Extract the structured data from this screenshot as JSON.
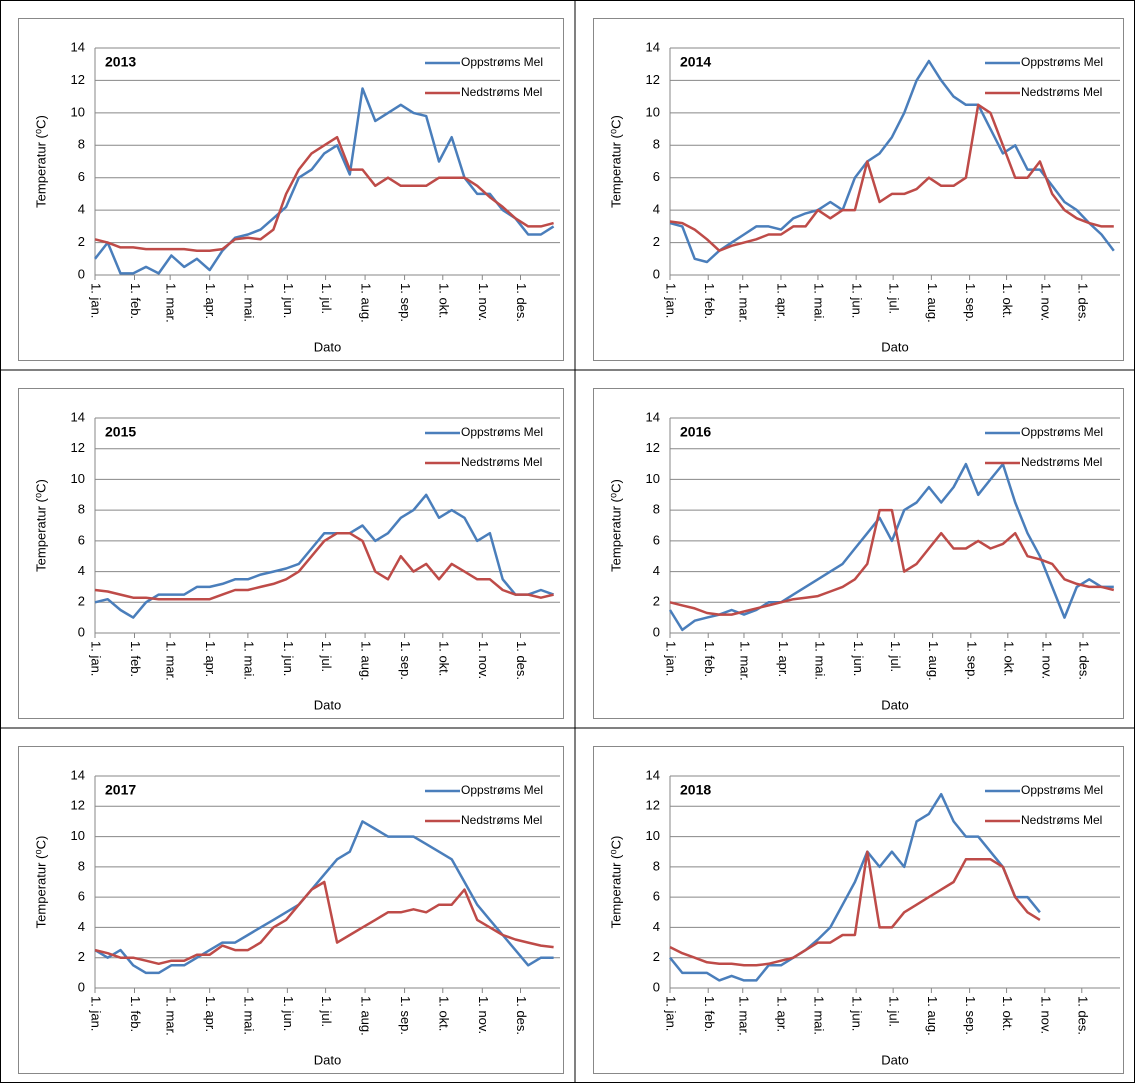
{
  "chart_data": [
    {
      "type": "line",
      "title": "2013",
      "y_label": "Temperatur (⁰C)",
      "x_label": "Dato",
      "legend": "upper right",
      "grid": true,
      "xlim": [
        0,
        365
      ],
      "ylim": [
        0,
        14
      ],
      "yticks": [
        0,
        2,
        4,
        6,
        8,
        10,
        12,
        14
      ],
      "xticks": [
        {
          "value": 0,
          "label": "1. jan."
        },
        {
          "value": 31,
          "label": "1. feb."
        },
        {
          "value": 59,
          "label": "1. mar."
        },
        {
          "value": 90,
          "label": "1. apr."
        },
        {
          "value": 120,
          "label": "1. mai."
        },
        {
          "value": 151,
          "label": "1. jun."
        },
        {
          "value": 181,
          "label": "1. jul."
        },
        {
          "value": 212,
          "label": "1. aug."
        },
        {
          "value": 243,
          "label": "1. sep."
        },
        {
          "value": 273,
          "label": "1. okt."
        },
        {
          "value": 304,
          "label": "1. nov."
        },
        {
          "value": 334,
          "label": "1. des."
        }
      ],
      "x": [
        0,
        10,
        20,
        30,
        40,
        50,
        60,
        70,
        80,
        90,
        100,
        110,
        120,
        130,
        140,
        150,
        160,
        170,
        180,
        190,
        200,
        210,
        220,
        230,
        240,
        250,
        260,
        270,
        280,
        290,
        300,
        310,
        320,
        330,
        340,
        350,
        360
      ],
      "series": [
        {
          "name": "Oppstrøms Mel",
          "color": "#4a7ebb",
          "values": [
            1,
            2,
            0.1,
            0.1,
            0.5,
            0.1,
            1.2,
            0.5,
            1,
            0.3,
            1.5,
            2.3,
            2.5,
            2.8,
            3.5,
            4.2,
            6,
            6.5,
            7.5,
            8,
            6.2,
            11.5,
            9.5,
            10,
            10.5,
            10,
            9.8,
            7,
            8.5,
            6,
            5,
            5,
            4,
            3.5,
            2.5,
            2.5,
            3
          ]
        },
        {
          "name": "Nedstrøms Mel",
          "color": "#be4b48",
          "values": [
            2.2,
            2,
            1.7,
            1.7,
            1.6,
            1.6,
            1.6,
            1.6,
            1.5,
            1.5,
            1.6,
            2.2,
            2.3,
            2.2,
            2.8,
            5,
            6.5,
            7.5,
            8,
            8.5,
            6.5,
            6.5,
            5.5,
            6,
            5.5,
            5.5,
            5.5,
            6,
            6,
            6,
            5.5,
            4.8,
            4.2,
            3.5,
            3,
            3,
            3.2
          ]
        }
      ]
    },
    {
      "type": "line",
      "title": "2014",
      "y_label": "Temperatur (⁰C)",
      "x_label": "Dato",
      "legend": "upper right",
      "grid": true,
      "xlim": [
        0,
        365
      ],
      "ylim": [
        0,
        14
      ],
      "yticks": [
        0,
        2,
        4,
        6,
        8,
        10,
        12,
        14
      ],
      "xticks": [
        {
          "value": 0,
          "label": "1. jan."
        },
        {
          "value": 31,
          "label": "1. feb."
        },
        {
          "value": 59,
          "label": "1. mar."
        },
        {
          "value": 90,
          "label": "1. apr."
        },
        {
          "value": 120,
          "label": "1. mai."
        },
        {
          "value": 151,
          "label": "1. jun."
        },
        {
          "value": 181,
          "label": "1. jul."
        },
        {
          "value": 212,
          "label": "1. aug."
        },
        {
          "value": 243,
          "label": "1. sep."
        },
        {
          "value": 273,
          "label": "1. okt."
        },
        {
          "value": 304,
          "label": "1. nov."
        },
        {
          "value": 334,
          "label": "1. des."
        }
      ],
      "x": [
        0,
        10,
        20,
        30,
        40,
        50,
        60,
        70,
        80,
        90,
        100,
        110,
        120,
        130,
        140,
        150,
        160,
        170,
        180,
        190,
        200,
        210,
        220,
        230,
        240,
        250,
        260,
        270,
        280,
        290,
        300,
        310,
        320,
        330,
        340,
        350,
        360
      ],
      "series": [
        {
          "name": "Oppstrøms Mel",
          "color": "#4a7ebb",
          "values": [
            3.2,
            3,
            1,
            0.8,
            1.5,
            2,
            2.5,
            3,
            3,
            2.8,
            3.5,
            3.8,
            4,
            4.5,
            4,
            6,
            7,
            7.5,
            8.5,
            10,
            12,
            13.2,
            12,
            11,
            10.5,
            10.5,
            9,
            7.5,
            8,
            6.5,
            6.5,
            5.5,
            4.5,
            4,
            3.2,
            2.5,
            1.5
          ]
        },
        {
          "name": "Nedstrøms Mel",
          "color": "#be4b48",
          "values": [
            3.3,
            3.2,
            2.8,
            2.2,
            1.5,
            1.8,
            2,
            2.2,
            2.5,
            2.5,
            3,
            3,
            4,
            3.5,
            4,
            4,
            7,
            4.5,
            5,
            5,
            5.3,
            6,
            5.5,
            5.5,
            6,
            10.5,
            10,
            8,
            6,
            6,
            7,
            5,
            4,
            3.5,
            3.2,
            3,
            3
          ]
        }
      ]
    },
    {
      "type": "line",
      "title": "2015",
      "y_label": "Temperatur (⁰C)",
      "x_label": "Dato",
      "legend": "upper right",
      "grid": true,
      "xlim": [
        0,
        365
      ],
      "ylim": [
        0,
        14
      ],
      "yticks": [
        0,
        2,
        4,
        6,
        8,
        10,
        12,
        14
      ],
      "xticks": [
        {
          "value": 0,
          "label": "1. jan."
        },
        {
          "value": 31,
          "label": "1. feb."
        },
        {
          "value": 59,
          "label": "1. mar."
        },
        {
          "value": 90,
          "label": "1. apr."
        },
        {
          "value": 120,
          "label": "1. mai."
        },
        {
          "value": 151,
          "label": "1. jun."
        },
        {
          "value": 181,
          "label": "1. jul."
        },
        {
          "value": 212,
          "label": "1. aug."
        },
        {
          "value": 243,
          "label": "1. sep."
        },
        {
          "value": 273,
          "label": "1. okt."
        },
        {
          "value": 304,
          "label": "1. nov."
        },
        {
          "value": 334,
          "label": "1. des."
        }
      ],
      "x": [
        0,
        10,
        20,
        30,
        40,
        50,
        60,
        70,
        80,
        90,
        100,
        110,
        120,
        130,
        140,
        150,
        160,
        170,
        180,
        190,
        200,
        210,
        220,
        230,
        240,
        250,
        260,
        270,
        280,
        290,
        300,
        310,
        320,
        330,
        340,
        350,
        360
      ],
      "series": [
        {
          "name": "Oppstrøms Mel",
          "color": "#4a7ebb",
          "values": [
            2,
            2.2,
            1.5,
            1,
            2,
            2.5,
            2.5,
            2.5,
            3,
            3,
            3.2,
            3.5,
            3.5,
            3.8,
            4,
            4.2,
            4.5,
            5.5,
            6.5,
            6.5,
            6.5,
            7,
            6,
            6.5,
            7.5,
            8,
            9,
            7.5,
            8,
            7.5,
            6,
            6.5,
            3.5,
            2.5,
            2.5,
            2.8,
            2.5
          ]
        },
        {
          "name": "Nedstrøms Mel",
          "color": "#be4b48",
          "values": [
            2.8,
            2.7,
            2.5,
            2.3,
            2.3,
            2.2,
            2.2,
            2.2,
            2.2,
            2.2,
            2.5,
            2.8,
            2.8,
            3,
            3.2,
            3.5,
            4,
            5,
            6,
            6.5,
            6.5,
            6,
            4,
            3.5,
            5,
            4,
            4.5,
            3.5,
            4.5,
            4,
            3.5,
            3.5,
            2.8,
            2.5,
            2.5,
            2.3,
            2.5
          ]
        }
      ]
    },
    {
      "type": "line",
      "title": "2016",
      "y_label": "Temperatur (⁰C)",
      "x_label": "Dato",
      "legend": "upper right",
      "grid": true,
      "xlim": [
        0,
        365
      ],
      "ylim": [
        0,
        14
      ],
      "yticks": [
        0,
        2,
        4,
        6,
        8,
        10,
        12,
        14
      ],
      "xticks": [
        {
          "value": 0,
          "label": "1. jan."
        },
        {
          "value": 31,
          "label": "1. feb."
        },
        {
          "value": 60,
          "label": "1. mar."
        },
        {
          "value": 91,
          "label": "1. apr."
        },
        {
          "value": 121,
          "label": "1. mai."
        },
        {
          "value": 152,
          "label": "1. jun."
        },
        {
          "value": 182,
          "label": "1. jul."
        },
        {
          "value": 213,
          "label": "1. aug."
        },
        {
          "value": 244,
          "label": "1. sep."
        },
        {
          "value": 274,
          "label": "1. okt."
        },
        {
          "value": 305,
          "label": "1. nov."
        },
        {
          "value": 335,
          "label": "1. des."
        }
      ],
      "x": [
        0,
        10,
        20,
        30,
        40,
        50,
        60,
        70,
        80,
        90,
        100,
        110,
        120,
        130,
        140,
        150,
        160,
        170,
        180,
        190,
        200,
        210,
        220,
        230,
        240,
        250,
        260,
        270,
        280,
        290,
        300,
        310,
        320,
        330,
        340,
        350,
        360
      ],
      "series": [
        {
          "name": "Oppstrøms Mel",
          "color": "#4a7ebb",
          "values": [
            1.5,
            0.2,
            0.8,
            1,
            1.2,
            1.5,
            1.2,
            1.5,
            2,
            2,
            2.5,
            3,
            3.5,
            4,
            4.5,
            5.5,
            6.5,
            7.5,
            6,
            8,
            8.5,
            9.5,
            8.5,
            9.5,
            11,
            9,
            10,
            11,
            8.5,
            6.5,
            5,
            3,
            1,
            3,
            3.5,
            3,
            3
          ]
        },
        {
          "name": "Nedstrøms Mel",
          "color": "#be4b48",
          "values": [
            2,
            1.8,
            1.6,
            1.3,
            1.2,
            1.2,
            1.4,
            1.6,
            1.8,
            2,
            2.2,
            2.3,
            2.4,
            2.7,
            3,
            3.5,
            4.5,
            8,
            8,
            4,
            4.5,
            5.5,
            6.5,
            5.5,
            5.5,
            6,
            5.5,
            5.8,
            6.5,
            5,
            4.8,
            4.5,
            3.5,
            3.2,
            3,
            3,
            2.8
          ]
        }
      ]
    },
    {
      "type": "line",
      "title": "2017",
      "y_label": "Temperatur (⁰C)",
      "x_label": "Dato",
      "legend": "upper right",
      "grid": true,
      "xlim": [
        0,
        365
      ],
      "ylim": [
        0,
        14
      ],
      "yticks": [
        0,
        2,
        4,
        6,
        8,
        10,
        12,
        14
      ],
      "xticks": [
        {
          "value": 0,
          "label": "1. jan."
        },
        {
          "value": 31,
          "label": "1. feb."
        },
        {
          "value": 59,
          "label": "1. mar."
        },
        {
          "value": 90,
          "label": "1. apr."
        },
        {
          "value": 120,
          "label": "1. mai."
        },
        {
          "value": 151,
          "label": "1. jun."
        },
        {
          "value": 181,
          "label": "1. jul."
        },
        {
          "value": 212,
          "label": "1. aug."
        },
        {
          "value": 243,
          "label": "1. sep."
        },
        {
          "value": 273,
          "label": "1. okt."
        },
        {
          "value": 304,
          "label": "1. nov."
        },
        {
          "value": 334,
          "label": "1. des."
        }
      ],
      "x": [
        0,
        10,
        20,
        30,
        40,
        50,
        60,
        70,
        80,
        90,
        100,
        110,
        120,
        130,
        140,
        150,
        160,
        170,
        180,
        190,
        200,
        210,
        220,
        230,
        240,
        250,
        260,
        270,
        280,
        290,
        300,
        310,
        320,
        330,
        340,
        350,
        360
      ],
      "series": [
        {
          "name": "Oppstrøms Mel",
          "color": "#4a7ebb",
          "values": [
            2.5,
            2,
            2.5,
            1.5,
            1,
            1,
            1.5,
            1.5,
            2,
            2.5,
            3,
            3,
            3.5,
            4,
            4.5,
            5,
            5.5,
            6.5,
            7.5,
            8.5,
            9,
            11,
            10.5,
            10,
            10,
            10,
            9.5,
            9,
            8.5,
            7,
            5.5,
            4.5,
            3.5,
            2.5,
            1.5,
            2,
            2
          ]
        },
        {
          "name": "Nedstrøms Mel",
          "color": "#be4b48",
          "values": [
            2.5,
            2.3,
            2,
            2,
            1.8,
            1.6,
            1.8,
            1.8,
            2.2,
            2.2,
            2.8,
            2.5,
            2.5,
            3,
            4,
            4.5,
            5.5,
            6.5,
            7,
            3,
            3.5,
            4,
            4.5,
            5,
            5,
            5.2,
            5,
            5.5,
            5.5,
            6.5,
            4.5,
            4,
            3.5,
            3.2,
            3,
            2.8,
            2.7
          ]
        }
      ]
    },
    {
      "type": "line",
      "title": "2018",
      "y_label": "Temperatur (⁰C)",
      "x_label": "Dato",
      "legend": "upper right",
      "grid": true,
      "xlim": [
        0,
        365
      ],
      "ylim": [
        0,
        14
      ],
      "yticks": [
        0,
        2,
        4,
        6,
        8,
        10,
        12,
        14
      ],
      "xticks": [
        {
          "value": 0,
          "label": "1. jan."
        },
        {
          "value": 31,
          "label": "1. feb."
        },
        {
          "value": 59,
          "label": "1. mar."
        },
        {
          "value": 90,
          "label": "1. apr."
        },
        {
          "value": 120,
          "label": "1. mai."
        },
        {
          "value": 151,
          "label": "1. jun."
        },
        {
          "value": 181,
          "label": "1. jul."
        },
        {
          "value": 212,
          "label": "1. aug."
        },
        {
          "value": 243,
          "label": "1. sep."
        },
        {
          "value": 273,
          "label": "1. okt."
        },
        {
          "value": 304,
          "label": "1. nov."
        },
        {
          "value": 334,
          "label": "1. des."
        }
      ],
      "x": [
        0,
        10,
        20,
        30,
        40,
        50,
        60,
        70,
        80,
        90,
        100,
        110,
        120,
        130,
        140,
        150,
        160,
        170,
        180,
        190,
        200,
        210,
        220,
        230,
        240,
        250,
        260,
        270,
        280,
        290,
        300,
        310,
        320,
        330,
        340,
        350,
        360
      ],
      "series": [
        {
          "name": "Oppstrøms Mel",
          "color": "#4a7ebb",
          "values": [
            2,
            1,
            1,
            1,
            0.5,
            0.8,
            0.5,
            0.5,
            1.5,
            1.5,
            2,
            2.5,
            3.2,
            4,
            5.5,
            7,
            9,
            8,
            9,
            8,
            11,
            11.5,
            12.8,
            11,
            10,
            10,
            9,
            8,
            6,
            6,
            5,
            null,
            null,
            null,
            null,
            null,
            null
          ]
        },
        {
          "name": "Nedstrøms Mel",
          "color": "#be4b48",
          "values": [
            2.7,
            2.3,
            2,
            1.7,
            1.6,
            1.6,
            1.5,
            1.5,
            1.6,
            1.8,
            2,
            2.5,
            3,
            3,
            3.5,
            3.5,
            9,
            4,
            4,
            5,
            5.5,
            6,
            6.5,
            7,
            8.5,
            8.5,
            8.5,
            8,
            6,
            5,
            4.5,
            null,
            null,
            null,
            null,
            null,
            null
          ]
        }
      ]
    }
  ]
}
